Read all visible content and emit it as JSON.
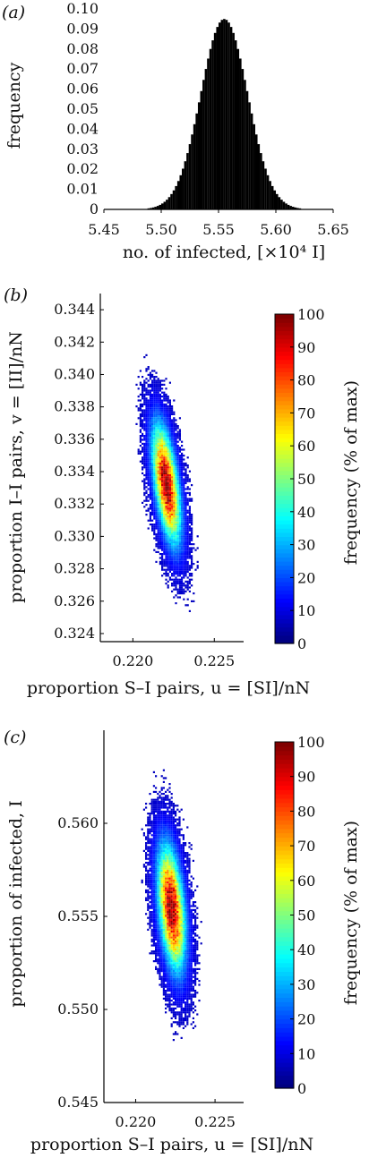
{
  "charts": [
    {
      "panel_label": "(a)",
      "type": "bar",
      "xlabel": "no. of infected, [×10⁴ I]",
      "ylabel": "frequency",
      "xlim": [
        5.45,
        5.65
      ],
      "ylim": [
        0,
        0.1
      ],
      "xticks": [
        "5.45",
        "5.50",
        "5.55",
        "5.60",
        "5.65"
      ],
      "yticks": [
        "0",
        "0.01",
        "0.02",
        "0.03",
        "0.04",
        "0.05",
        "0.06",
        "0.07",
        "0.08",
        "0.09",
        "0.10"
      ],
      "distribution": {
        "mean": 5.555,
        "sd": 0.0205,
        "peak": 0.095
      }
    },
    {
      "panel_label": "(b)",
      "type": "heatmap",
      "xlabel": "proportion S–I pairs, u = [SI]/nN",
      "ylabel": "proportion I–I pairs, v = [II]/nN",
      "xlim": [
        0.218,
        0.2268
      ],
      "ylim": [
        0.3235,
        0.345
      ],
      "xticks": [
        "0.220",
        "0.225"
      ],
      "yticks": [
        "0.324",
        "0.326",
        "0.328",
        "0.330",
        "0.332",
        "0.334",
        "0.336",
        "0.338",
        "0.340",
        "0.342",
        "0.344"
      ],
      "colorbar": {
        "label": "frequency (% of max)",
        "ticks": [
          "0",
          "10",
          "20",
          "30",
          "40",
          "50",
          "60",
          "70",
          "80",
          "90",
          "100"
        ]
      },
      "distribution": {
        "mean_x": 0.222,
        "mean_y": 0.3333,
        "sd_x": 0.00055,
        "sd_y": 0.0023,
        "corr": -0.55
      }
    },
    {
      "panel_label": "(c)",
      "type": "heatmap",
      "xlabel": "proportion S–I pairs, u = [SI]/nN",
      "ylabel": "proportion of infected, I",
      "xlim": [
        0.218,
        0.2268
      ],
      "ylim": [
        0.545,
        0.565
      ],
      "xticks": [
        "0.220",
        "0.225"
      ],
      "yticks": [
        "0.545",
        "0.550",
        "0.555",
        "0.560"
      ],
      "colorbar": {
        "label": "frequency (% of max)",
        "ticks": [
          "0",
          "10",
          "20",
          "30",
          "40",
          "50",
          "60",
          "70",
          "80",
          "90",
          "100"
        ]
      },
      "distribution": {
        "mean_x": 0.2222,
        "mean_y": 0.5555,
        "sd_x": 0.00055,
        "sd_y": 0.0021,
        "corr": -0.4
      }
    }
  ]
}
